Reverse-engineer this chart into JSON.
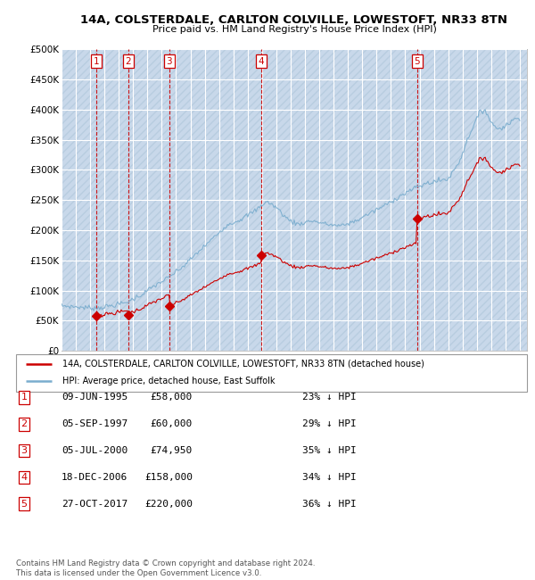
{
  "title1": "14A, COLSTERDALE, CARLTON COLVILLE, LOWESTOFT, NR33 8TN",
  "title2": "Price paid vs. HM Land Registry's House Price Index (HPI)",
  "ylim": [
    0,
    500000
  ],
  "yticks": [
    0,
    50000,
    100000,
    150000,
    200000,
    250000,
    300000,
    350000,
    400000,
    450000,
    500000
  ],
  "ytick_labels": [
    "£0",
    "£50K",
    "£100K",
    "£150K",
    "£200K",
    "£250K",
    "£300K",
    "£350K",
    "£400K",
    "£450K",
    "£500K"
  ],
  "xlim_start": 1993.0,
  "xlim_end": 2025.5,
  "plot_bg_color": "#dce9f5",
  "hatch_color": "#c8d8ea",
  "grid_color": "#ffffff",
  "sale_dates": [
    1995.44,
    1997.67,
    2000.51,
    2006.96,
    2017.82
  ],
  "sale_prices": [
    58000,
    60000,
    74950,
    158000,
    220000
  ],
  "sale_labels": [
    "1",
    "2",
    "3",
    "4",
    "5"
  ],
  "sale_line_color": "#cc0000",
  "hpi_line_color": "#7aadce",
  "legend_label_sale": "14A, COLSTERDALE, CARLTON COLVILLE, LOWESTOFT, NR33 8TN (detached house)",
  "legend_label_hpi": "HPI: Average price, detached house, East Suffolk",
  "table_rows": [
    [
      "1",
      "09-JUN-1995",
      "£58,000",
      "23% ↓ HPI"
    ],
    [
      "2",
      "05-SEP-1997",
      "£60,000",
      "29% ↓ HPI"
    ],
    [
      "3",
      "05-JUL-2000",
      "£74,950",
      "35% ↓ HPI"
    ],
    [
      "4",
      "18-DEC-2006",
      "£158,000",
      "34% ↓ HPI"
    ],
    [
      "5",
      "27-OCT-2017",
      "£220,000",
      "36% ↓ HPI"
    ]
  ],
  "footer_text": "Contains HM Land Registry data © Crown copyright and database right 2024.\nThis data is licensed under the Open Government Licence v3.0."
}
